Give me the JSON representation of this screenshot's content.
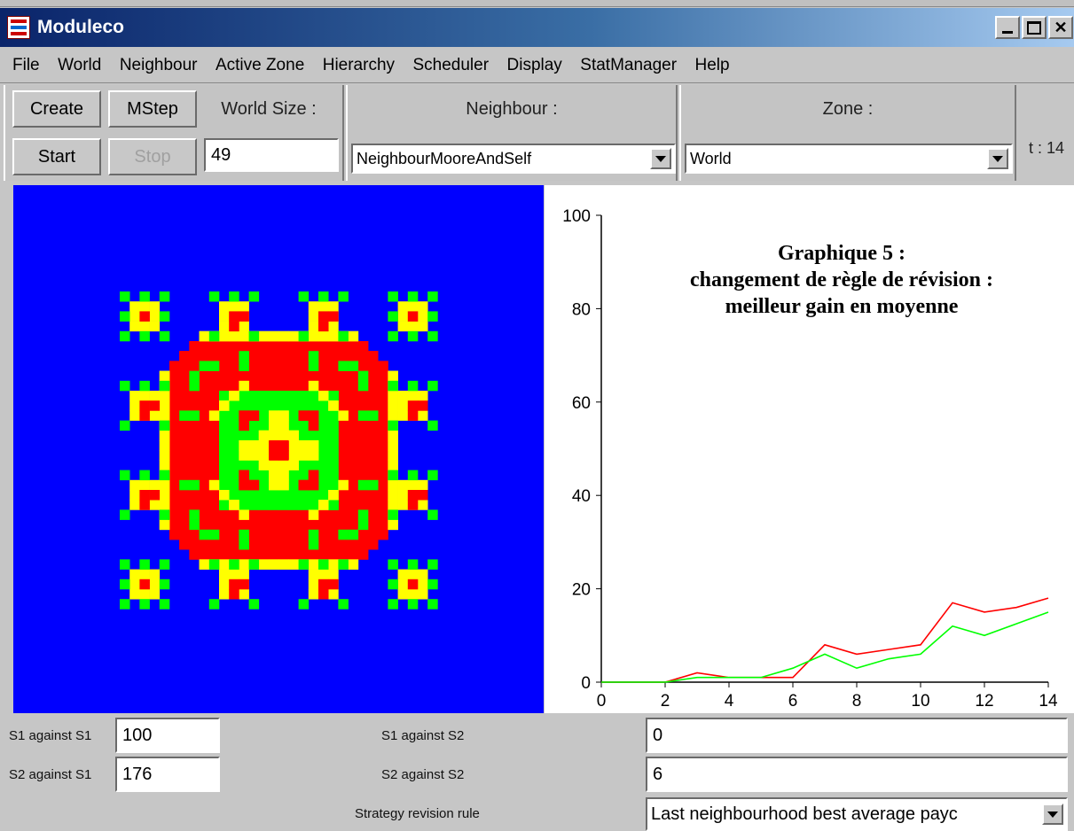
{
  "window": {
    "title": "Moduleco"
  },
  "menu": [
    "File",
    "World",
    "Neighbour",
    "Active Zone",
    "Hierarchy",
    "Scheduler",
    "Display",
    "StatManager",
    "Help"
  ],
  "toolbar": {
    "create_label": "Create",
    "mstep_label": "MStep",
    "start_label": "Start",
    "stop_label": "Stop",
    "world_size_label": "World Size :",
    "world_size_value": "49",
    "neighbour_label": "Neighbour :",
    "neighbour_value": "NeighbourMooreAndSelf",
    "zone_label": "Zone :",
    "zone_value": "World",
    "time_label": "t : 14"
  },
  "colors": {
    "world_bg": "#0000ff",
    "s1": "#ff0000",
    "s2": "#00ff00",
    "yellow": "#ffff00"
  },
  "caption": {
    "line1": "Graphique 5 :",
    "line2": "changement de règle de révision :",
    "line3": "meilleur gain en moyenne"
  },
  "chart_data": {
    "type": "line",
    "x": [
      0,
      1,
      2,
      3,
      4,
      5,
      6,
      7,
      8,
      9,
      10,
      11,
      12,
      13,
      14
    ],
    "series": [
      {
        "color": "#ff0000",
        "values": [
          0,
          0,
          0,
          2,
          1,
          1,
          1,
          8,
          6,
          7,
          8,
          17,
          15,
          16,
          18
        ]
      },
      {
        "color": "#00ff00",
        "values": [
          0,
          0,
          0,
          1,
          1,
          1,
          3,
          6,
          3,
          5,
          6,
          12,
          10,
          12.5,
          15
        ]
      }
    ],
    "xticks": [
      "0",
      "2",
      "4",
      "6",
      "8",
      "10",
      "12",
      "14"
    ],
    "yticks": [
      "0",
      "20",
      "40",
      "60",
      "80",
      "100"
    ],
    "xlim": [
      0,
      14
    ],
    "ylim": [
      0,
      100
    ],
    "grid": false
  },
  "params": {
    "s1s1_label": "S1 against S1",
    "s1s1_value": "100",
    "s1s2_label": "S1 against S2",
    "s1s2_value": "0",
    "s2s1_label": "S2 against S1",
    "s2s1_value": "176",
    "s2s2_label": "S2 against S2",
    "s2s2_value": "6",
    "rule_label": "Strategy revision rule",
    "rule_value": "Last neighbourhood best average payc"
  }
}
